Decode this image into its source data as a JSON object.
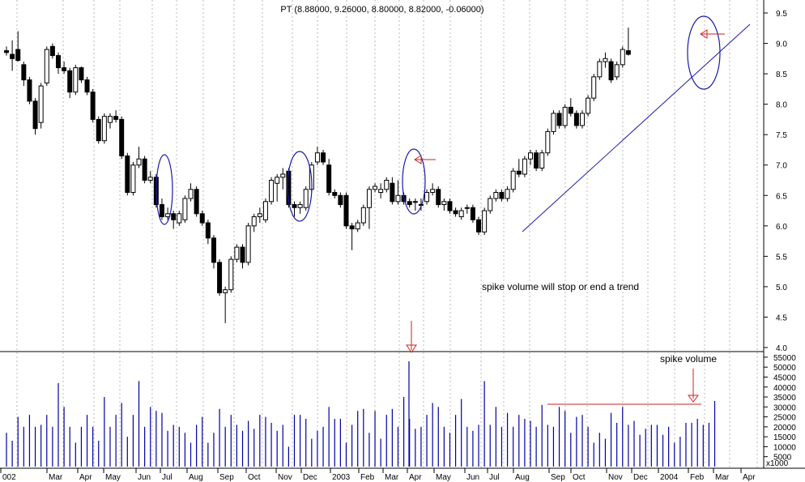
{
  "chart_data": [
    {
      "type": "candlestick",
      "title": "PT (8.88000, 9.26000, 8.80000, 8.82000, -0.06000)",
      "y_ticks": [
        "9.5",
        "9.0",
        "8.5",
        "8.0",
        "7.5",
        "7.0",
        "6.5",
        "6.0",
        "5.5",
        "5.0",
        "4.5",
        "4.0"
      ],
      "ylim": [
        4.0,
        9.7
      ],
      "x_labels": [
        "002",
        "Mar",
        "Apr",
        "May",
        "Jun",
        "Jul",
        "Aug",
        "Sep",
        "Oct",
        "Nov",
        "Dec",
        "2003",
        "Feb",
        "Mar",
        "Apr",
        "May",
        "Jun",
        "Jul",
        "Aug",
        "Sep",
        "Oct",
        "Nov",
        "Dec",
        "2004",
        "Feb",
        "Mar",
        "Apr"
      ],
      "grid": "vertical dotted",
      "candles": [
        {
          "o": 8.88,
          "h": 8.95,
          "l": 8.8,
          "c": 8.85
        },
        {
          "o": 8.82,
          "h": 9.05,
          "l": 8.55,
          "c": 8.75
        },
        {
          "o": 8.9,
          "h": 9.2,
          "l": 8.7,
          "c": 8.72
        },
        {
          "o": 8.65,
          "h": 8.7,
          "l": 8.3,
          "c": 8.4
        },
        {
          "o": 8.4,
          "h": 8.45,
          "l": 8.0,
          "c": 8.05
        },
        {
          "o": 8.05,
          "h": 8.1,
          "l": 7.5,
          "c": 7.6
        },
        {
          "o": 7.7,
          "h": 8.35,
          "l": 7.6,
          "c": 8.3
        },
        {
          "o": 8.35,
          "h": 8.95,
          "l": 8.3,
          "c": 8.9
        },
        {
          "o": 8.95,
          "h": 9.0,
          "l": 8.75,
          "c": 8.8
        },
        {
          "o": 8.8,
          "h": 8.85,
          "l": 8.5,
          "c": 8.6
        },
        {
          "o": 8.6,
          "h": 8.7,
          "l": 8.5,
          "c": 8.55
        },
        {
          "o": 8.55,
          "h": 8.6,
          "l": 8.1,
          "c": 8.2
        },
        {
          "o": 8.2,
          "h": 8.65,
          "l": 8.15,
          "c": 8.6
        },
        {
          "o": 8.6,
          "h": 8.62,
          "l": 8.35,
          "c": 8.4
        },
        {
          "o": 8.4,
          "h": 8.45,
          "l": 8.15,
          "c": 8.2
        },
        {
          "o": 8.2,
          "h": 8.25,
          "l": 7.7,
          "c": 7.75
        },
        {
          "o": 7.75,
          "h": 7.8,
          "l": 7.35,
          "c": 7.4
        },
        {
          "o": 7.4,
          "h": 7.85,
          "l": 7.35,
          "c": 7.8
        },
        {
          "o": 7.7,
          "h": 7.85,
          "l": 7.6,
          "c": 7.8
        },
        {
          "o": 7.8,
          "h": 7.9,
          "l": 7.7,
          "c": 7.75
        },
        {
          "o": 7.75,
          "h": 7.8,
          "l": 7.1,
          "c": 7.15
        },
        {
          "o": 7.15,
          "h": 7.2,
          "l": 6.5,
          "c": 6.55
        },
        {
          "o": 6.55,
          "h": 7.05,
          "l": 6.5,
          "c": 7.0
        },
        {
          "o": 7.0,
          "h": 7.3,
          "l": 6.95,
          "c": 7.1
        },
        {
          "o": 7.1,
          "h": 7.15,
          "l": 6.7,
          "c": 6.75
        },
        {
          "o": 6.75,
          "h": 6.9,
          "l": 6.7,
          "c": 6.8
        },
        {
          "o": 6.8,
          "h": 6.85,
          "l": 6.3,
          "c": 6.35
        },
        {
          "o": 6.35,
          "h": 6.45,
          "l": 6.1,
          "c": 6.15
        },
        {
          "o": 6.15,
          "h": 6.3,
          "l": 6.1,
          "c": 6.2
        },
        {
          "o": 6.2,
          "h": 6.25,
          "l": 5.95,
          "c": 6.1
        },
        {
          "o": 6.05,
          "h": 6.25,
          "l": 6.0,
          "c": 6.2
        },
        {
          "o": 6.1,
          "h": 6.5,
          "l": 6.05,
          "c": 6.45
        },
        {
          "o": 6.45,
          "h": 6.7,
          "l": 6.4,
          "c": 6.6
        },
        {
          "o": 6.6,
          "h": 6.65,
          "l": 6.15,
          "c": 6.2
        },
        {
          "o": 6.2,
          "h": 6.25,
          "l": 6.0,
          "c": 6.05
        },
        {
          "o": 6.05,
          "h": 6.1,
          "l": 5.7,
          "c": 5.8
        },
        {
          "o": 5.8,
          "h": 5.85,
          "l": 5.3,
          "c": 5.4
        },
        {
          "o": 5.4,
          "h": 5.45,
          "l": 4.85,
          "c": 4.9
        },
        {
          "o": 4.9,
          "h": 5.0,
          "l": 4.4,
          "c": 4.95
        },
        {
          "o": 4.95,
          "h": 5.5,
          "l": 4.9,
          "c": 5.45
        },
        {
          "o": 5.45,
          "h": 5.7,
          "l": 5.4,
          "c": 5.65
        },
        {
          "o": 5.65,
          "h": 5.7,
          "l": 5.3,
          "c": 5.4
        },
        {
          "o": 5.4,
          "h": 6.05,
          "l": 5.35,
          "c": 6.0
        },
        {
          "o": 6.0,
          "h": 6.2,
          "l": 5.9,
          "c": 6.15
        },
        {
          "o": 6.15,
          "h": 6.3,
          "l": 6.05,
          "c": 6.2
        },
        {
          "o": 6.1,
          "h": 6.45,
          "l": 6.05,
          "c": 6.4
        },
        {
          "o": 6.4,
          "h": 6.8,
          "l": 6.35,
          "c": 6.75
        },
        {
          "o": 6.7,
          "h": 6.85,
          "l": 6.4,
          "c": 6.8
        },
        {
          "o": 6.8,
          "h": 6.95,
          "l": 6.6,
          "c": 6.85
        },
        {
          "o": 6.9,
          "h": 6.95,
          "l": 6.3,
          "c": 6.35
        },
        {
          "o": 6.35,
          "h": 6.4,
          "l": 6.15,
          "c": 6.3
        },
        {
          "o": 6.3,
          "h": 6.4,
          "l": 6.2,
          "c": 6.35
        },
        {
          "o": 6.3,
          "h": 6.65,
          "l": 6.25,
          "c": 6.6
        },
        {
          "o": 6.6,
          "h": 7.05,
          "l": 6.55,
          "c": 7.0
        },
        {
          "o": 7.05,
          "h": 7.3,
          "l": 7.0,
          "c": 7.2
        },
        {
          "o": 7.2,
          "h": 7.25,
          "l": 7.0,
          "c": 7.05
        },
        {
          "o": 7.0,
          "h": 7.1,
          "l": 6.5,
          "c": 6.55
        },
        {
          "o": 6.55,
          "h": 6.6,
          "l": 6.45,
          "c": 6.5
        },
        {
          "o": 6.5,
          "h": 6.55,
          "l": 6.3,
          "c": 6.35
        },
        {
          "o": 6.5,
          "h": 6.55,
          "l": 5.95,
          "c": 6.0
        },
        {
          "o": 6.0,
          "h": 6.05,
          "l": 5.6,
          "c": 5.95
        },
        {
          "o": 5.95,
          "h": 6.1,
          "l": 5.9,
          "c": 6.05
        },
        {
          "o": 6.05,
          "h": 6.35,
          "l": 6.0,
          "c": 6.3
        },
        {
          "o": 6.3,
          "h": 6.65,
          "l": 5.95,
          "c": 6.6
        },
        {
          "o": 6.6,
          "h": 6.7,
          "l": 6.55,
          "c": 6.65
        },
        {
          "o": 6.55,
          "h": 6.7,
          "l": 6.45,
          "c": 6.6
        },
        {
          "o": 6.6,
          "h": 6.8,
          "l": 6.55,
          "c": 6.75
        },
        {
          "o": 6.7,
          "h": 6.8,
          "l": 6.35,
          "c": 6.4
        },
        {
          "o": 6.4,
          "h": 6.75,
          "l": 6.35,
          "c": 6.5
        },
        {
          "o": 6.5,
          "h": 6.55,
          "l": 6.35,
          "c": 6.4
        },
        {
          "o": 6.4,
          "h": 6.45,
          "l": 6.3,
          "c": 6.35
        },
        {
          "o": 6.4,
          "h": 6.45,
          "l": 6.25,
          "c": 6.4
        },
        {
          "o": 6.35,
          "h": 6.45,
          "l": 6.25,
          "c": 6.35
        },
        {
          "o": 6.4,
          "h": 6.6,
          "l": 6.35,
          "c": 6.55
        },
        {
          "o": 6.55,
          "h": 6.7,
          "l": 6.5,
          "c": 6.6
        },
        {
          "o": 6.6,
          "h": 6.65,
          "l": 6.3,
          "c": 6.35
        },
        {
          "o": 6.35,
          "h": 6.45,
          "l": 6.25,
          "c": 6.4
        },
        {
          "o": 6.4,
          "h": 6.45,
          "l": 6.2,
          "c": 6.25
        },
        {
          "o": 6.25,
          "h": 6.3,
          "l": 6.15,
          "c": 6.2
        },
        {
          "o": 6.15,
          "h": 6.3,
          "l": 6.1,
          "c": 6.25
        },
        {
          "o": 6.3,
          "h": 6.35,
          "l": 6.2,
          "c": 6.3
        },
        {
          "o": 6.3,
          "h": 6.35,
          "l": 6.05,
          "c": 6.1
        },
        {
          "o": 6.1,
          "h": 6.15,
          "l": 5.85,
          "c": 5.9
        },
        {
          "o": 5.9,
          "h": 6.3,
          "l": 5.85,
          "c": 6.25
        },
        {
          "o": 6.25,
          "h": 6.5,
          "l": 6.2,
          "c": 6.45
        },
        {
          "o": 6.45,
          "h": 6.6,
          "l": 6.4,
          "c": 6.55
        },
        {
          "o": 6.55,
          "h": 6.6,
          "l": 6.4,
          "c": 6.45
        },
        {
          "o": 6.45,
          "h": 6.65,
          "l": 6.4,
          "c": 6.6
        },
        {
          "o": 6.6,
          "h": 6.95,
          "l": 6.55,
          "c": 6.9
        },
        {
          "o": 6.9,
          "h": 7.1,
          "l": 6.8,
          "c": 6.85
        },
        {
          "o": 6.85,
          "h": 7.15,
          "l": 6.8,
          "c": 7.1
        },
        {
          "o": 7.1,
          "h": 7.25,
          "l": 7.0,
          "c": 7.2
        },
        {
          "o": 7.2,
          "h": 7.25,
          "l": 6.9,
          "c": 6.95
        },
        {
          "o": 6.95,
          "h": 7.25,
          "l": 6.9,
          "c": 7.2
        },
        {
          "o": 7.2,
          "h": 7.6,
          "l": 7.15,
          "c": 7.55
        },
        {
          "o": 7.55,
          "h": 7.9,
          "l": 7.5,
          "c": 7.85
        },
        {
          "o": 7.85,
          "h": 7.9,
          "l": 7.6,
          "c": 7.65
        },
        {
          "o": 7.65,
          "h": 8.0,
          "l": 7.6,
          "c": 7.95
        },
        {
          "o": 7.95,
          "h": 8.1,
          "l": 7.8,
          "c": 7.85
        },
        {
          "o": 7.85,
          "h": 7.9,
          "l": 7.6,
          "c": 7.65
        },
        {
          "o": 7.65,
          "h": 7.9,
          "l": 7.6,
          "c": 7.85
        },
        {
          "o": 7.85,
          "h": 8.15,
          "l": 7.8,
          "c": 8.1
        },
        {
          "o": 8.1,
          "h": 8.5,
          "l": 8.05,
          "c": 8.45
        },
        {
          "o": 8.45,
          "h": 8.75,
          "l": 8.4,
          "c": 8.7
        },
        {
          "o": 8.7,
          "h": 8.85,
          "l": 8.6,
          "c": 8.75
        },
        {
          "o": 8.7,
          "h": 8.75,
          "l": 8.35,
          "c": 8.4
        },
        {
          "o": 8.45,
          "h": 8.7,
          "l": 8.4,
          "c": 8.65
        },
        {
          "o": 8.65,
          "h": 8.95,
          "l": 8.6,
          "c": 8.9
        },
        {
          "o": 8.88,
          "h": 9.26,
          "l": 8.8,
          "c": 8.82
        }
      ]
    },
    {
      "type": "bar",
      "y_ticks": [
        "55000",
        "50000",
        "45000",
        "40000",
        "35000",
        "30000",
        "25000",
        "20000",
        "15000",
        "10000",
        "5000"
      ],
      "ylim": [
        0,
        57000
      ],
      "unit_label": "x1000",
      "values": [
        17000,
        13000,
        25000,
        20000,
        26000,
        20000,
        21000,
        26000,
        20000,
        42000,
        30000,
        20000,
        12000,
        20000,
        26000,
        20000,
        13000,
        35000,
        20000,
        26000,
        32000,
        15000,
        26000,
        43000,
        20000,
        30000,
        28000,
        27000,
        18000,
        21000,
        20000,
        17000,
        12000,
        21000,
        25000,
        12000,
        17000,
        29000,
        20000,
        26000,
        21000,
        18000,
        23000,
        19000,
        26000,
        25000,
        22000,
        18000,
        21000,
        10000,
        26000,
        26000,
        24000,
        14000,
        18000,
        20000,
        30000,
        24000,
        24000,
        12000,
        21000,
        28000,
        29000,
        17000,
        28000,
        14000,
        26000,
        29000,
        20000,
        35000,
        24000,
        19000,
        20000,
        26000,
        32000,
        30000,
        20000,
        17000,
        26000,
        34000,
        20000,
        18000,
        21000,
        43000,
        21000,
        30000,
        20000,
        27000,
        20000,
        26000,
        24000,
        23000,
        20000,
        31000,
        21000,
        20000,
        30000,
        28000,
        17000,
        25000,
        26000,
        20000,
        12000,
        17000,
        14000,
        27000,
        22000,
        30000,
        21000,
        23000,
        16000,
        19000,
        21000,
        21000,
        16000,
        20000,
        12000,
        15000,
        22000,
        22000,
        24000,
        21000,
        22000,
        33000
      ],
      "spike_value": 53000
    }
  ],
  "annotations": {
    "note_trend": "spike volume will stop or end a trend",
    "note_spike": "spike volume"
  },
  "colors": {
    "up_candle": "#ffffff",
    "down_candle": "#000000",
    "volume": "#0000a0",
    "trendline": "#1a1aaa",
    "ellipse": "#1a1aaa",
    "arrow": "#cc2222",
    "grid": "#b8b8b8"
  }
}
